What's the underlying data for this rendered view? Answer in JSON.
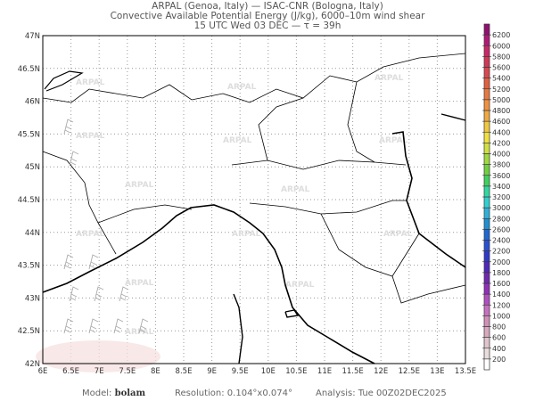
{
  "header": {
    "line1": "ARPAL (Genoa, Italy)  —  ISAC-CNR (Bologna, Italy)",
    "line2": "Convective Available Potential Energy (J/kg), 6000–10m wind shear",
    "line3": "15 UTC Wed 03 DEC  —  τ = 39h"
  },
  "map": {
    "lon_range": [
      6,
      13.5
    ],
    "lat_range": [
      42,
      47
    ],
    "grid": "dotted",
    "lon_labels": [
      "6E",
      "6.5E",
      "7E",
      "7.5E",
      "8E",
      "8.5E",
      "9E",
      "9.5E",
      "10E",
      "10.5E",
      "11E",
      "11.5E",
      "12E",
      "12.5E",
      "13E",
      "13.5E"
    ],
    "lat_labels": [
      "42N",
      "42.5N",
      "43N",
      "43.5N",
      "44N",
      "44.5N",
      "45N",
      "45.5N",
      "46N",
      "46.5N",
      "47N"
    ],
    "watermark": "ARPAL"
  },
  "colorbar": {
    "labels": [
      "200",
      "400",
      "600",
      "800",
      "1000",
      "1200",
      "1400",
      "1600",
      "1800",
      "2000",
      "2200",
      "2400",
      "2600",
      "2800",
      "3000",
      "3200",
      "3400",
      "3600",
      "3800",
      "4000",
      "4200",
      "4400",
      "4600",
      "4800",
      "5000",
      "5200",
      "5400",
      "5600",
      "5800",
      "6000",
      "6200"
    ]
  },
  "footer": {
    "model_label": "Model:",
    "model": "bolam",
    "resolution": "Resolution: 0.104°x0.074°",
    "analysis": "Analysis: Tue 00Z02DEC2025"
  }
}
